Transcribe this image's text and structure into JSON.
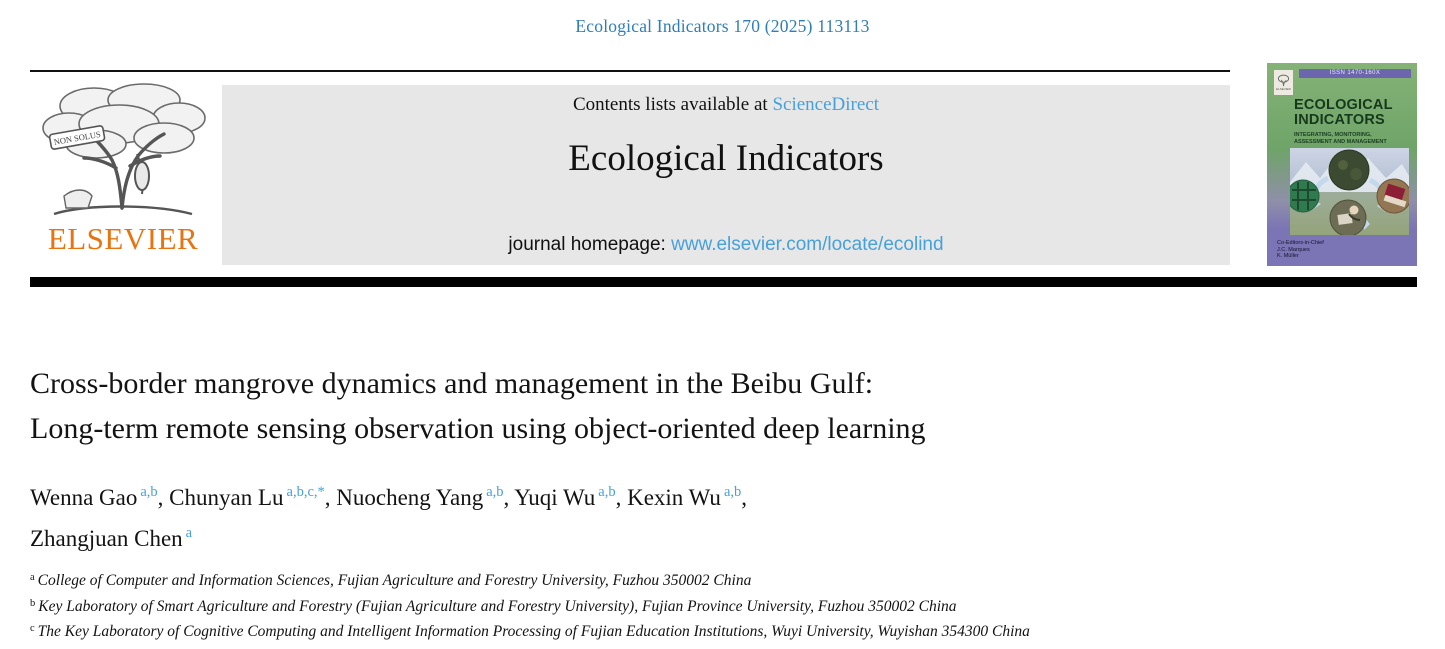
{
  "citation": {
    "text": "Ecological Indicators 170 (2025) 113113"
  },
  "banner": {
    "contents_prefix": "Contents lists available at ",
    "sciencedirect_link": "ScienceDirect",
    "journal_title": "Ecological Indicators",
    "homepage_prefix": "journal homepage: ",
    "homepage_link": "www.elsevier.com/locate/ecolind"
  },
  "elsevier_logo": {
    "wordmark": "ELSEVIER",
    "ribbon_text": "NON SOLUS"
  },
  "cover": {
    "issn_text": "ISSN 1470-160X",
    "title_line1": "ECOLOGICAL",
    "title_line2": "INDICATORS",
    "subtitle": "INTEGRATING, MONITORING, ASSESSMENT AND MANAGEMENT",
    "logo_caption": "ELSEVIER",
    "editors_label": "Co-Editors-in-Chief",
    "editor1": "J.C. Marques",
    "editor2": "K. Müller"
  },
  "article": {
    "title_line1": "Cross-border mangrove dynamics and management in the Beibu Gulf:",
    "title_line2": "Long-term remote sensing observation using object-oriented deep learning",
    "authors": [
      {
        "name": "Wenna Gao",
        "sup": "a,b"
      },
      {
        "name": "Chunyan Lu",
        "sup": "a,b,c,*"
      },
      {
        "name": "Nuocheng Yang",
        "sup": "a,b"
      },
      {
        "name": "Yuqi Wu",
        "sup": "a,b"
      },
      {
        "name": "Kexin Wu",
        "sup": "a,b",
        "break_after": true
      },
      {
        "name": "Zhangjuan Chen",
        "sup": "a"
      }
    ],
    "affiliations": [
      {
        "sup": "a",
        "text": "College of Computer and Information Sciences, Fujian Agriculture and Forestry University, Fuzhou 350002 China"
      },
      {
        "sup": "b",
        "text": "Key Laboratory of Smart Agriculture and Forestry (Fujian Agriculture and Forestry University), Fujian Province University, Fuzhou 350002 China"
      },
      {
        "sup": "c",
        "text": "The Key Laboratory of Cognitive Computing and Intelligent Information Processing of Fujian Education Institutions, Wuyi University, Wuyishan 354300 China"
      }
    ]
  },
  "colors": {
    "citation_blue": "#2e7eb8",
    "link_blue": "#46a1da",
    "elsevier_orange": "#e8740f",
    "banner_gray": "#e7e7e7",
    "cover_green": "#6fa468",
    "cover_purple": "#7b74b5",
    "divider_black": "#000000"
  }
}
